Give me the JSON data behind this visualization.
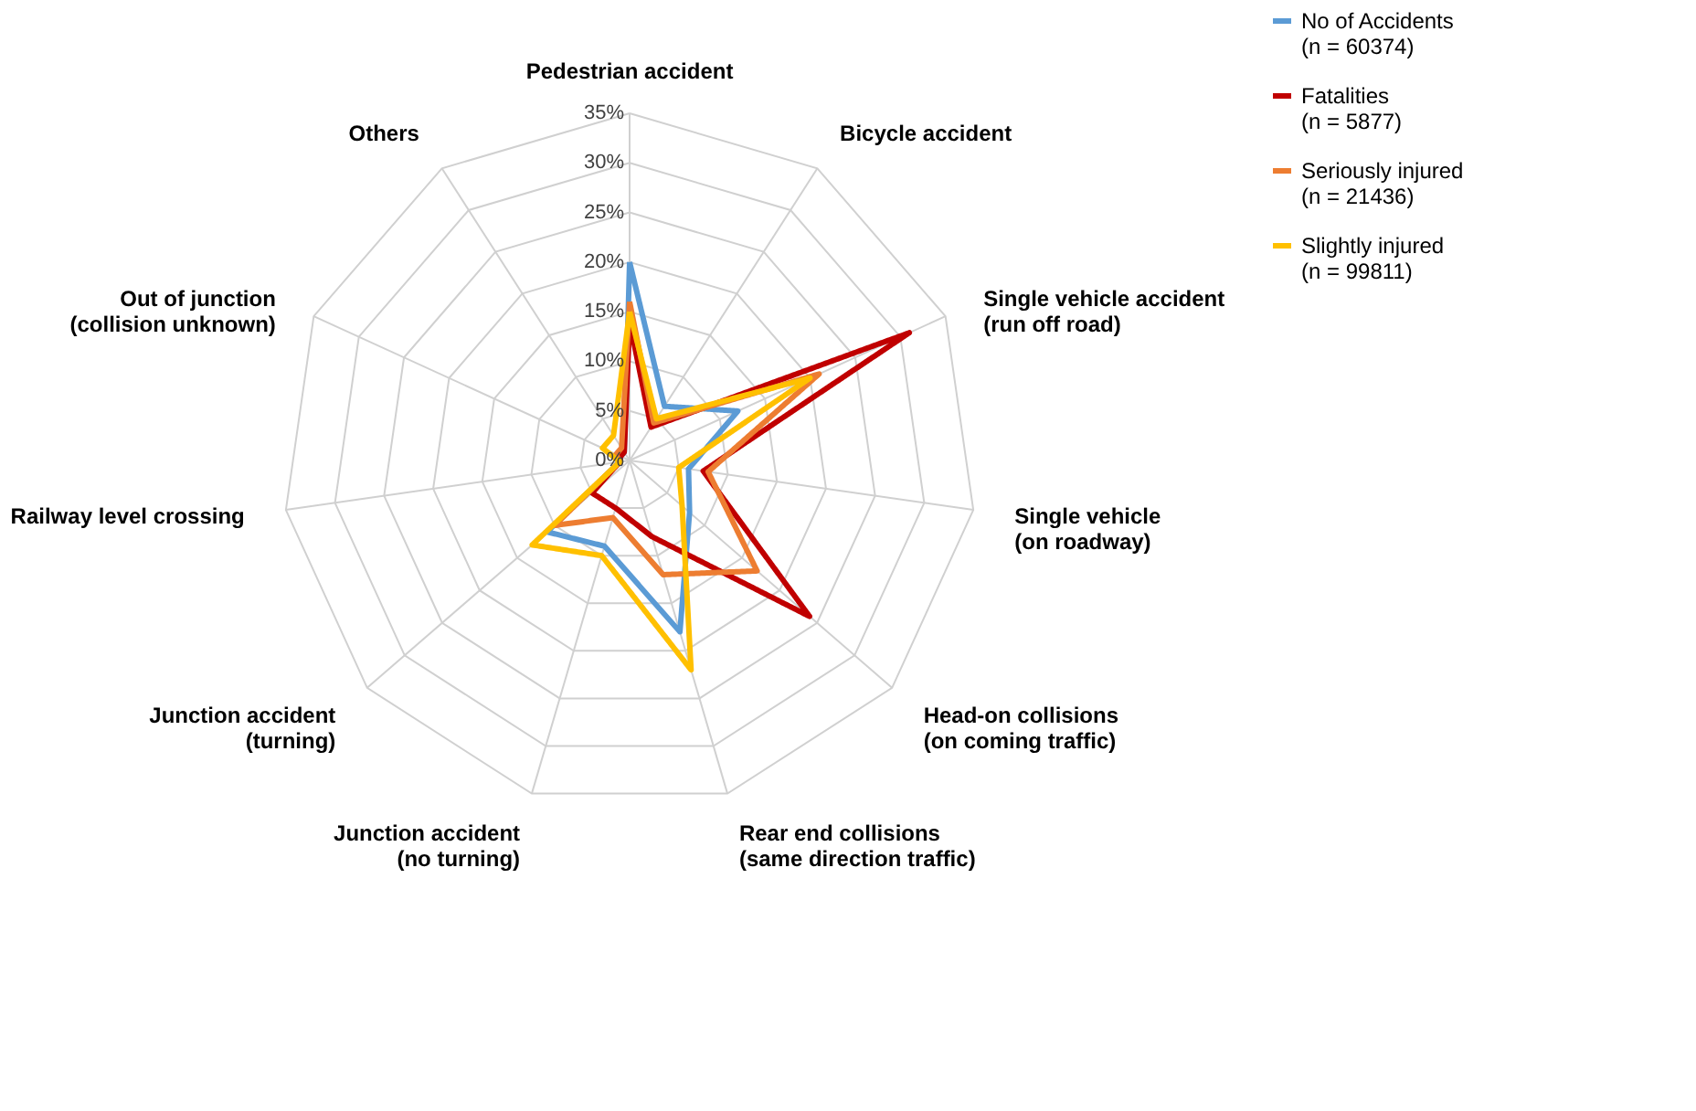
{
  "chart_data": {
    "type": "radar",
    "categories": [
      "Pedestrian accident",
      "Bicycle accident",
      "Single vehicle accident (run off road)",
      "Single vehicle (on roadway)",
      "Head-on collisions (on coming traffic)",
      "Rear end collisions (same direction traffic)",
      "Junction accident (no turning)",
      "Junction accident (turning)",
      "Railway level crossing",
      "Out of junction (collision unknown)",
      "Others"
    ],
    "ylim": [
      0,
      35
    ],
    "yticks": [
      {
        "value": 0,
        "label": "0%"
      },
      {
        "value": 5,
        "label": "5%"
      },
      {
        "value": 10,
        "label": "10%"
      },
      {
        "value": 15,
        "label": "15%"
      },
      {
        "value": 20,
        "label": "20%"
      },
      {
        "value": 25,
        "label": "25%"
      },
      {
        "value": 30,
        "label": "30%"
      },
      {
        "value": 35,
        "label": "35%"
      }
    ],
    "series": [
      {
        "name": "No of Accidents (n = 60374)",
        "color": "#5b9bd5",
        "values": [
          20,
          6.5,
          12,
          6,
          8,
          18,
          9,
          11,
          1,
          1,
          1
        ]
      },
      {
        "name": "Fatalities (n = 5877)",
        "color": "#c00000",
        "values": [
          14,
          4,
          31,
          7.5,
          24,
          8,
          5,
          5,
          1,
          1,
          1
        ]
      },
      {
        "name": "Seriously injured (n = 21436)",
        "color": "#ed7d31",
        "values": [
          16,
          4.5,
          21,
          8,
          17,
          12,
          6,
          10,
          1,
          1.5,
          1.5
        ]
      },
      {
        "name": "Slightly injured (n = 99811)",
        "color": "#ffc000",
        "values": [
          15,
          5,
          20,
          5,
          7,
          22,
          10,
          13,
          1,
          3,
          3
        ]
      }
    ],
    "grid": true,
    "legend": "right",
    "line_style": "solid",
    "marker": "none"
  }
}
